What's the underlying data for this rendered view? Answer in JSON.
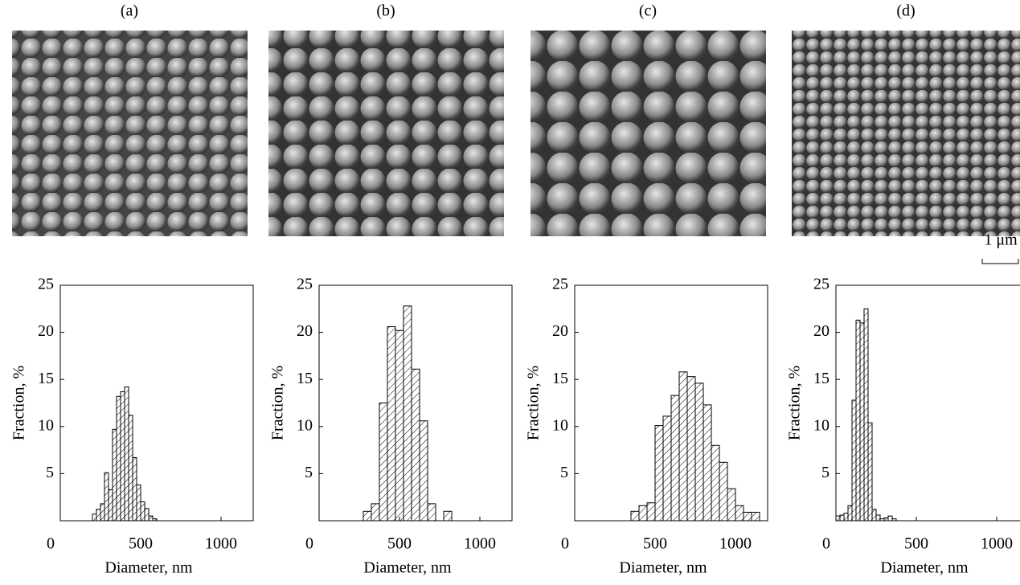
{
  "chart_data": [
    {
      "type": "histogram",
      "title": "(a)",
      "x_label": "Diameter, nm",
      "y_label": "Fraction, %",
      "bins": [
        200,
        225,
        250,
        275,
        300,
        325,
        350,
        375,
        400,
        425,
        450,
        475,
        500,
        525,
        550,
        575,
        600
      ],
      "values": [
        0.7,
        1.2,
        1.8,
        5.1,
        3.3,
        9.7,
        13.2,
        13.7,
        14.2,
        11.2,
        6.7,
        3.8,
        2.0,
        1.3,
        0.5,
        0.2
      ],
      "xlim": [
        0,
        1200
      ],
      "ylim": [
        0,
        25
      ],
      "xticks": [
        0,
        500,
        1000
      ],
      "yticks": [
        5,
        10,
        15,
        20,
        25
      ],
      "color": "#000000"
    },
    {
      "type": "histogram",
      "title": "(b)",
      "x_label": "Diameter, nm",
      "y_label": "Fraction, %",
      "bins": [
        275,
        325,
        375,
        425,
        475,
        525,
        575,
        625,
        675,
        725,
        775,
        825
      ],
      "values": [
        1.0,
        1.8,
        12.5,
        20.6,
        20.2,
        22.8,
        16.1,
        10.6,
        1.8,
        0,
        1.0
      ],
      "xlim": [
        0,
        1200
      ],
      "ylim": [
        0,
        25
      ],
      "xticks": [
        0,
        500,
        1000
      ],
      "yticks": [
        5,
        10,
        15,
        20,
        25
      ],
      "color": "#000000"
    },
    {
      "type": "histogram",
      "title": "(c)",
      "x_label": "Diameter, nm",
      "y_label": "Fraction, %",
      "bins": [
        350,
        400,
        450,
        500,
        550,
        600,
        650,
        700,
        750,
        800,
        850,
        900,
        950,
        1000,
        1050,
        1100,
        1150
      ],
      "values": [
        1.0,
        1.6,
        1.9,
        10.1,
        11.1,
        13.3,
        15.8,
        15.3,
        14.6,
        12.3,
        8.0,
        6.2,
        3.4,
        1.6,
        0.9,
        0.9
      ],
      "xlim": [
        0,
        1200
      ],
      "ylim": [
        0,
        25
      ],
      "xticks": [
        0,
        500,
        1000
      ],
      "yticks": [
        5,
        10,
        15,
        20,
        25
      ],
      "color": "#000000"
    },
    {
      "type": "histogram",
      "title": "(d)",
      "x_label": "Diameter, nm",
      "y_label": "Fraction, %",
      "bins": [
        0,
        25,
        50,
        75,
        100,
        125,
        150,
        175,
        200,
        225,
        250,
        275,
        300,
        325,
        350,
        375
      ],
      "values": [
        0.5,
        0.6,
        0.8,
        1.6,
        12.8,
        21.3,
        21.0,
        22.5,
        10.4,
        1.2,
        0.6,
        0.2,
        0.3,
        0.5,
        0.2
      ],
      "xlim": [
        0,
        1200
      ],
      "ylim": [
        0,
        25
      ],
      "xticks": [
        0,
        500,
        1000
      ],
      "yticks": [
        5,
        10,
        15,
        20,
        25
      ],
      "color": "#000000"
    }
  ],
  "scale_bar": "1 μm"
}
